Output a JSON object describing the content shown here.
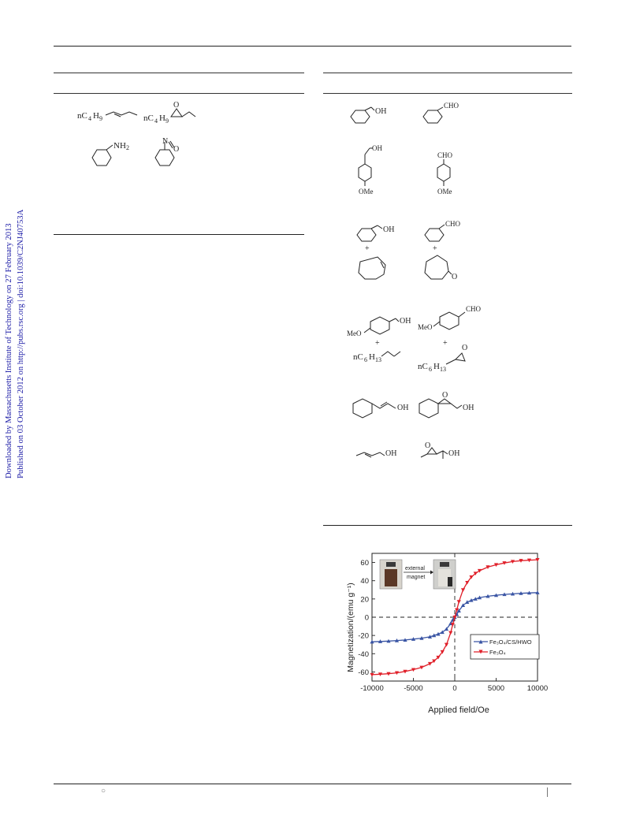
{
  "sidebar": {
    "line1": "Downloaded by Massachusetts Institute of Technology on 27 February 2013",
    "line2": "Published on 03 October 2012 on http://pubs.rsc.org | doi:10.1039/C2NJ40753A"
  },
  "left_table": {
    "row1": {
      "reactant_label": "nC",
      "reactant_sub": "4",
      "reactant_tail": "H",
      "reactant_sub2": "9",
      "product_label": "nC",
      "product_sub": "4",
      "product_tail": "H",
      "product_sub2": "9",
      "product_o": "O"
    },
    "row2": {
      "reactant_label": "NH",
      "reactant_sub": "2",
      "product_n": "N",
      "product_o": "O"
    }
  },
  "right_table": {
    "row1": {
      "reactant_label": "OH",
      "product_label": "CHO"
    },
    "row2": {
      "reactant_label": "OH",
      "reactant_sub": "OMe",
      "product_label": "CHO",
      "product_sub": "OMe"
    },
    "row3": {
      "reactant_label": "OH",
      "product_label": "CHO",
      "plus": "+",
      "product_o": "O"
    },
    "row4": {
      "reactant_meo": "MeO",
      "reactant_label": "OH",
      "product_meo": "MeO",
      "product_label": "CHO",
      "plus": "+",
      "alkene_label": "nC",
      "alkene_sub": "6",
      "alkene_tail": "H",
      "alkene_sub2": "13",
      "epoxide_label": "nC",
      "epoxide_sub": "6",
      "epoxide_tail": "H",
      "epoxide_sub2": "13",
      "epoxide_o": "O"
    },
    "row5": {
      "reactant_label": "OH",
      "product_label": "OH",
      "product_o": "O"
    },
    "row6": {
      "reactant_label": "OH",
      "product_label": "OH",
      "product_o": "O"
    }
  },
  "chart_data": {
    "type": "line",
    "xlabel": "Applied field/Oe",
    "ylabel": "Magnetization/(emu g⁻¹)",
    "xlim": [
      -10000,
      10000
    ],
    "ylim": [
      -70,
      70
    ],
    "xticks": [
      "-10000",
      "-5000",
      "0",
      "5000",
      "10000"
    ],
    "yticks": [
      "60",
      "40",
      "20",
      "0",
      "-20",
      "-40",
      "-60"
    ],
    "legend_position": "bottom-right",
    "inset": {
      "arrow_label_1": "external",
      "arrow_label_2": "magnet"
    },
    "series": [
      {
        "name": "Fe₃O₄/CS/HWO",
        "color": "#3a55a4",
        "marker": "triangle-up",
        "x": [
          -10000,
          -9000,
          -8000,
          -7000,
          -6000,
          -5000,
          -4000,
          -3000,
          -2500,
          -2000,
          -1500,
          -1000,
          -500,
          -250,
          0,
          250,
          500,
          1000,
          1500,
          2000,
          2500,
          3000,
          4000,
          5000,
          6000,
          7000,
          8000,
          9000,
          10000
        ],
        "y": [
          -27,
          -26.6,
          -26.2,
          -25.6,
          -25,
          -24,
          -23,
          -21.5,
          -20,
          -18.5,
          -16.5,
          -13,
          -7,
          -3,
          0,
          3,
          7,
          13,
          16.5,
          18.5,
          20,
          21.5,
          23,
          24,
          25,
          25.6,
          26.2,
          26.6,
          27
        ]
      },
      {
        "name": "Fe₃O₄",
        "color": "#e0202a",
        "marker": "triangle-down",
        "x": [
          -10000,
          -9000,
          -8000,
          -7000,
          -6000,
          -5000,
          -4000,
          -3000,
          -2500,
          -2000,
          -1500,
          -1000,
          -500,
          -250,
          0,
          250,
          500,
          1000,
          1500,
          2000,
          2500,
          3000,
          4000,
          5000,
          6000,
          7000,
          8000,
          9000,
          10000
        ],
        "y": [
          -63,
          -62.5,
          -62,
          -61,
          -59.5,
          -57.5,
          -55,
          -51,
          -48,
          -44,
          -38,
          -30,
          -17,
          -8,
          0,
          8,
          17,
          30,
          38,
          44,
          48,
          51,
          55,
          57.5,
          59.5,
          61,
          62,
          62.5,
          63
        ]
      }
    ]
  }
}
